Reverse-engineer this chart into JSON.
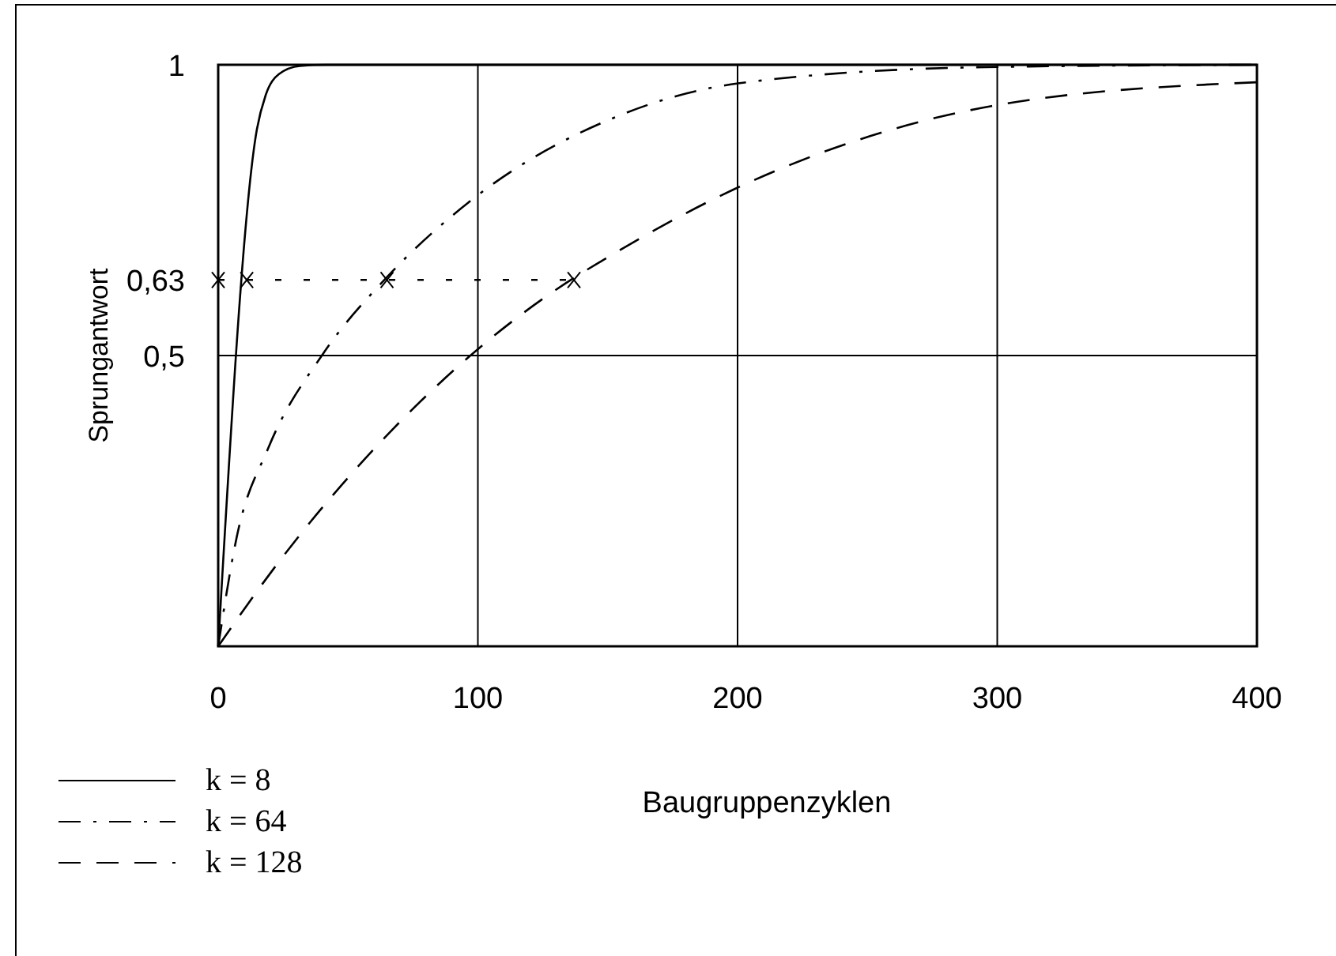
{
  "chart_data": {
    "type": "line",
    "xlabel": "Baugruppenzyklen",
    "ylabel": "Sprungantwort",
    "xlim": [
      0,
      400
    ],
    "ylim": [
      0,
      1
    ],
    "xticks": [
      0,
      100,
      200,
      300,
      400
    ],
    "yticks": [
      {
        "value": 0.5,
        "label": "0,5"
      },
      {
        "value": 0.63,
        "label": "0,63"
      },
      1
    ],
    "grid": "x",
    "legend": "bottom left",
    "marker": "none",
    "ref_lines": [
      {
        "axis": "y",
        "value": 0.5,
        "color": "#000000",
        "line_style": "solid"
      }
    ],
    "series": [
      {
        "name": "k = 8",
        "color": "#000000",
        "line_style": "solid",
        "x": [
          0,
          14.9,
          18.3,
          23.4,
          31.5,
          41.7,
          400
        ],
        "values": [
          0,
          0.889,
          0.948,
          0.984,
          0.998,
          1,
          1
        ]
      },
      {
        "name": "k = 64",
        "color": "#000000",
        "line_style": "dashdot",
        "x": [
          0,
          7.1,
          19.3,
          40.7,
          64.6,
          98.6,
          153.5,
          200.2,
          295.6,
          400
        ],
        "values": [
          0,
          0.187,
          0.341,
          0.505,
          0.633,
          0.771,
          0.911,
          0.968,
          0.996,
          1
        ]
      },
      {
        "name": "k = 128",
        "color": "#000000",
        "line_style": "dashed",
        "x": [
          0,
          21.3,
          66.1,
          96.6,
          136.8,
          147.4,
          198.2,
          297.8,
          400
        ],
        "values": [
          0,
          0.133,
          0.368,
          0.498,
          0.633,
          0.662,
          0.785,
          0.929,
          0.97
        ]
      },
      {
        "color": "#000000",
        "line_style": "dotted",
        "marker": "cross",
        "x": [
          0,
          11,
          65,
          137
        ],
        "values": [
          0.63,
          0.63,
          0.63,
          0.63
        ]
      }
    ]
  }
}
